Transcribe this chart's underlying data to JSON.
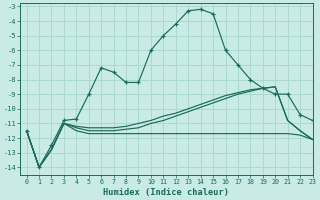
{
  "xlabel": "Humidex (Indice chaleur)",
  "xlim": [
    -0.5,
    23
  ],
  "ylim": [
    -14.5,
    -2.8
  ],
  "yticks": [
    -14,
    -13,
    -12,
    -11,
    -10,
    -9,
    -8,
    -7,
    -6,
    -5,
    -4,
    -3
  ],
  "xticks": [
    0,
    1,
    2,
    3,
    4,
    5,
    6,
    7,
    8,
    9,
    10,
    11,
    12,
    13,
    14,
    15,
    16,
    17,
    18,
    19,
    20,
    21,
    22,
    23
  ],
  "bg_color": "#c8ebe6",
  "grid_color": "#acd8d2",
  "line_color": "#1a6b5a",
  "line1_x": [
    0,
    1,
    2,
    3,
    4,
    5,
    6,
    7,
    8,
    9,
    10,
    11,
    12,
    13,
    14,
    15,
    16,
    17,
    18,
    19,
    20,
    21,
    22,
    23
  ],
  "line1_y": [
    -11.5,
    -14.0,
    -12.5,
    -10.8,
    -10.7,
    -9.0,
    -7.2,
    -7.5,
    -8.2,
    -8.2,
    -6.0,
    -5.0,
    -4.2,
    -3.3,
    -3.2,
    -3.5,
    -6.0,
    -7.0,
    -8.0,
    -8.6,
    -9.0,
    -9.0,
    -10.4,
    -10.8
  ],
  "line2_x": [
    0,
    1,
    2,
    3,
    4,
    5,
    6,
    7,
    8,
    9,
    10,
    11,
    12,
    13,
    14,
    15,
    16,
    17,
    18,
    19,
    20,
    21,
    22,
    23
  ],
  "line2_y": [
    -11.5,
    -14.0,
    -12.8,
    -11.0,
    -11.2,
    -11.3,
    -11.3,
    -11.3,
    -11.2,
    -11.0,
    -10.8,
    -10.5,
    -10.3,
    -10.0,
    -9.7,
    -9.4,
    -9.1,
    -8.9,
    -8.7,
    -8.6,
    -8.5,
    -10.8,
    -11.5,
    -12.1
  ],
  "line3_x": [
    0,
    1,
    2,
    3,
    4,
    5,
    6,
    7,
    8,
    9,
    10,
    11,
    12,
    13,
    14,
    15,
    16,
    17,
    18,
    19,
    20,
    21,
    22,
    23
  ],
  "line3_y": [
    -11.5,
    -14.0,
    -12.8,
    -11.0,
    -11.3,
    -11.5,
    -11.5,
    -11.5,
    -11.4,
    -11.3,
    -11.0,
    -10.8,
    -10.5,
    -10.2,
    -9.9,
    -9.6,
    -9.3,
    -9.0,
    -8.8,
    -8.6,
    -8.5,
    -10.8,
    -11.5,
    -12.1
  ],
  "line4_x": [
    0,
    1,
    2,
    3,
    4,
    5,
    6,
    7,
    8,
    9,
    10,
    11,
    12,
    13,
    14,
    15,
    16,
    17,
    18,
    19,
    20,
    21,
    22,
    23
  ],
  "line4_y": [
    -11.5,
    -14.0,
    -12.8,
    -11.0,
    -11.5,
    -11.7,
    -11.7,
    -11.7,
    -11.7,
    -11.7,
    -11.7,
    -11.7,
    -11.7,
    -11.7,
    -11.7,
    -11.7,
    -11.7,
    -11.7,
    -11.7,
    -11.7,
    -11.7,
    -11.7,
    -11.8,
    -12.1
  ]
}
